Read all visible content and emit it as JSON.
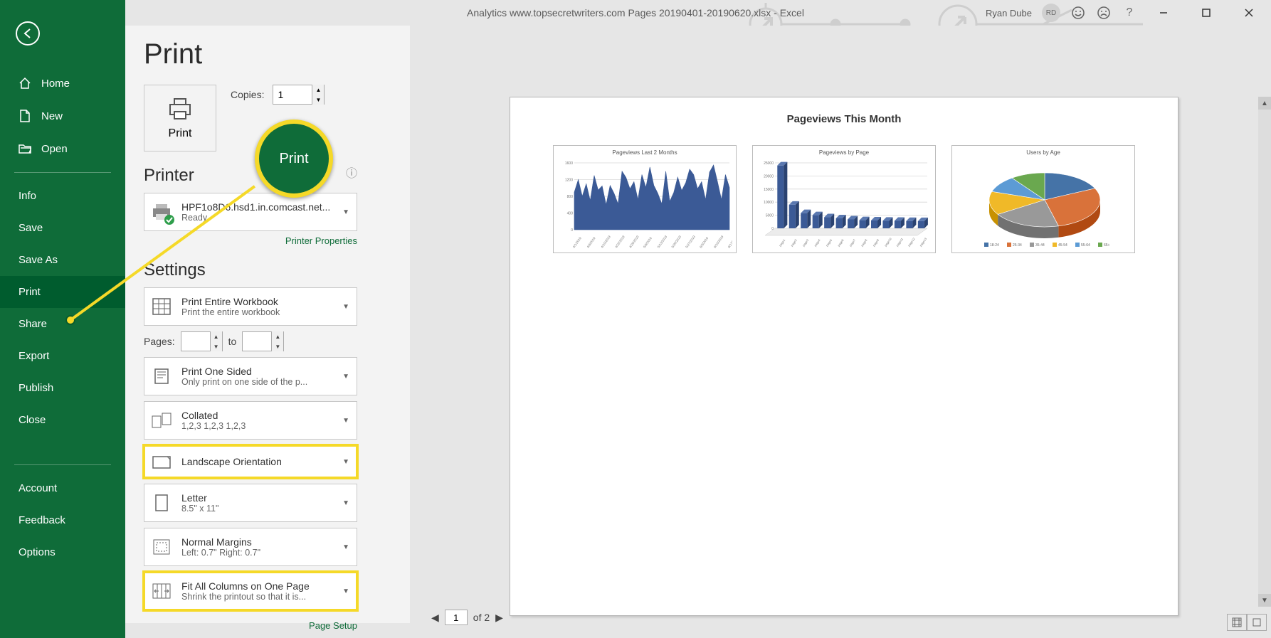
{
  "window": {
    "title": "Analytics www.topsecretwriters.com Pages 20190401-20190620.xlsx  -  Excel",
    "user_name": "Ryan Dube",
    "user_initials": "RD"
  },
  "sidebar": {
    "items": [
      {
        "label": "Home",
        "icon": "home-icon"
      },
      {
        "label": "New",
        "icon": "new-icon"
      },
      {
        "label": "Open",
        "icon": "open-icon"
      },
      {
        "label": "Info"
      },
      {
        "label": "Save"
      },
      {
        "label": "Save As"
      },
      {
        "label": "Print",
        "active": true
      },
      {
        "label": "Share"
      },
      {
        "label": "Export"
      },
      {
        "label": "Publish"
      },
      {
        "label": "Close"
      }
    ],
    "bottom": [
      {
        "label": "Account"
      },
      {
        "label": "Feedback"
      },
      {
        "label": "Options"
      }
    ]
  },
  "print_page": {
    "title": "Print",
    "print_button_label": "Print",
    "copies_label": "Copies:",
    "copies_value": "1",
    "printer_heading": "Printer",
    "printer": {
      "name": "HPF1o8D6.hsd1.in.comcast.net...",
      "status": "Ready"
    },
    "printer_properties_link": "Printer Properties",
    "settings_heading": "Settings",
    "pages_label": "Pages:",
    "pages_to_label": "to",
    "settings": {
      "scope": {
        "title": "Print Entire Workbook",
        "sub": "Print the entire workbook"
      },
      "sides": {
        "title": "Print One Sided",
        "sub": "Only print on one side of the p..."
      },
      "collate": {
        "title": "Collated",
        "sub": "1,2,3    1,2,3    1,2,3"
      },
      "orientation": {
        "title": "Landscape Orientation"
      },
      "paper": {
        "title": "Letter",
        "sub": "8.5\" x 11\""
      },
      "margins": {
        "title": "Normal Margins",
        "sub": "Left:  0.7\"    Right:  0.7\""
      },
      "scaling": {
        "title": "Fit All Columns on One Page",
        "sub": "Shrink the printout so that it is..."
      }
    },
    "page_setup_link": "Page Setup"
  },
  "preview": {
    "page_title": "Pageviews This Month",
    "chart1": {
      "title": "Pageviews Last 2 Months",
      "type": "area",
      "color": "#3b5a96",
      "grid_color": "#d8d8d8",
      "ylim": [
        0,
        1600
      ],
      "yticks": [
        0,
        400,
        800,
        1200,
        1600
      ],
      "x_labels": [
        "4/1/2019",
        "4/8/2019",
        "4/15/2019",
        "4/22/2019",
        "4/29/2019",
        "5/6/2019",
        "5/13/2019",
        "5/20/2019",
        "5/27/2019",
        "6/3/2019",
        "6/10/2019",
        "6/17/2019"
      ],
      "values": [
        900,
        1200,
        800,
        1100,
        700,
        1300,
        950,
        1050,
        600,
        1060,
        870,
        620,
        1400,
        1250,
        980,
        1150,
        720,
        1320,
        1010,
        1500,
        1060,
        870,
        620,
        1400,
        680,
        890,
        1260,
        940,
        1120,
        1450,
        1320,
        980,
        1150,
        720,
        1380,
        1550,
        1150,
        720,
        1320,
        1010
      ]
    },
    "chart2": {
      "title": "Pageviews by Page",
      "type": "bar3d",
      "color": "#3b5a96",
      "grid_color": "#d8d8d8",
      "ylim": [
        0,
        25000
      ],
      "yticks": [
        0,
        5000,
        10000,
        15000,
        20000,
        25000
      ],
      "values": [
        24000,
        9000,
        5800,
        5000,
        4200,
        3800,
        3400,
        3100,
        3000,
        2900,
        2850,
        2800,
        2750
      ]
    },
    "chart3": {
      "title": "Users by Age",
      "type": "pie3d",
      "slices": [
        {
          "label": "18-24",
          "value": 18,
          "color": "#4573a7"
        },
        {
          "label": "25-34",
          "value": 28,
          "color": "#d9723a"
        },
        {
          "label": "35-44",
          "value": 20,
          "color": "#999999"
        },
        {
          "label": "45-54",
          "value": 14,
          "color": "#f0b928"
        },
        {
          "label": "55-64",
          "value": 10,
          "color": "#5c9bd5"
        },
        {
          "label": "65+",
          "value": 10,
          "color": "#6aa84f"
        }
      ]
    },
    "pager": {
      "current": "1",
      "total_label": "of 2"
    }
  },
  "annotation": {
    "circle_label": "Print"
  }
}
